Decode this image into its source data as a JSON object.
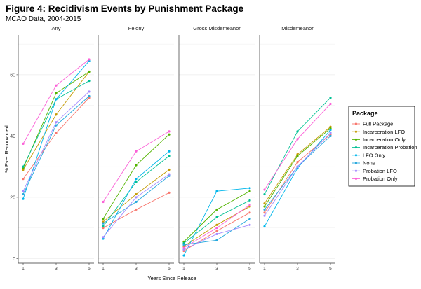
{
  "chart_data": {
    "type": "line",
    "title": "Figure 4: Recidivism Events by Punishment Package",
    "subtitle": "MCAO Data, 2004-2015",
    "xlabel": "Years Since Release",
    "ylabel": "% Ever Reconvicted",
    "x": [
      1,
      3,
      5
    ],
    "x_ticks": [
      "1",
      "3",
      "5"
    ],
    "y_ticks": [
      "0",
      "20",
      "40",
      "60"
    ],
    "ylim": [
      -1.5,
      73
    ],
    "grid": "horizontal",
    "legend": {
      "title": "Package",
      "placement": "right"
    },
    "colors": {
      "Full Package": "#F8766D",
      "Incarceration LFO": "#C49A00",
      "Incarceration Only": "#53B400",
      "Incarceration Probation": "#00C094",
      "LFO Only": "#00B6EB",
      "None": "#28A9DD",
      "Probation LFO": "#A58AFF",
      "Probation Only": "#FB61D7"
    },
    "panels": [
      {
        "name": "Any",
        "series": [
          {
            "name": "Full Package",
            "values": [
              26,
              41,
              52.5
            ]
          },
          {
            "name": "Incarceration LFO",
            "values": [
              29,
              47,
              61
            ]
          },
          {
            "name": "Incarceration Only",
            "values": [
              29.5,
              54,
              61
            ]
          },
          {
            "name": "Incarceration Probation",
            "values": [
              30,
              52,
              58
            ]
          },
          {
            "name": "LFO Only",
            "values": [
              19.5,
              52,
              64.5
            ]
          },
          {
            "name": "None",
            "values": [
              21,
              43.5,
              53
            ]
          },
          {
            "name": "Probation LFO",
            "values": [
              22,
              44.5,
              54.5
            ]
          },
          {
            "name": "Probation Only",
            "values": [
              37.5,
              56.5,
              65
            ]
          }
        ]
      },
      {
        "name": "Felony",
        "series": [
          {
            "name": "Full Package",
            "values": [
              10,
              16,
              21.5
            ]
          },
          {
            "name": "Incarceration LFO",
            "values": [
              12,
              21,
              29
            ]
          },
          {
            "name": "Incarceration Only",
            "values": [
              13,
              30.5,
              40.5
            ]
          },
          {
            "name": "Incarceration Probation",
            "values": [
              10.5,
              25,
              33.5
            ]
          },
          {
            "name": "LFO Only",
            "values": [
              6.5,
              26,
              35
            ]
          },
          {
            "name": "None",
            "values": [
              11.5,
              18.5,
              27
            ]
          },
          {
            "name": "Probation LFO",
            "values": [
              7,
              20,
              27.5
            ]
          },
          {
            "name": "Probation Only",
            "values": [
              18.5,
              35,
              41.5
            ]
          }
        ]
      },
      {
        "name": "Gross Misdemeanor",
        "series": [
          {
            "name": "Full Package",
            "values": [
              2.5,
              9,
              15
            ]
          },
          {
            "name": "Incarceration LFO",
            "values": [
              4,
              11,
              17
            ]
          },
          {
            "name": "Incarceration Only",
            "values": [
              5.5,
              16,
              22
            ]
          },
          {
            "name": "Incarceration Probation",
            "values": [
              5,
              13.5,
              19
            ]
          },
          {
            "name": "LFO Only",
            "values": [
              1,
              22,
              23
            ]
          },
          {
            "name": "None",
            "values": [
              4.5,
              6,
              13
            ]
          },
          {
            "name": "Probation LFO",
            "values": [
              3,
              8,
              11
            ]
          },
          {
            "name": "Probation Only",
            "values": [
              3.5,
              10,
              17.5
            ]
          }
        ]
      },
      {
        "name": "Misdemeanor",
        "series": [
          {
            "name": "Full Package",
            "values": [
              15,
              31.5,
              40.5
            ]
          },
          {
            "name": "Incarceration LFO",
            "values": [
              18,
              34,
              43
            ]
          },
          {
            "name": "Incarceration Only",
            "values": [
              17,
              33.5,
              42.5
            ]
          },
          {
            "name": "Incarceration Probation",
            "values": [
              21,
              41.5,
              52.5
            ]
          },
          {
            "name": "LFO Only",
            "values": [
              10.5,
              29.5,
              42
            ]
          },
          {
            "name": "None",
            "values": [
              16,
              30,
              40
            ]
          },
          {
            "name": "Probation LFO",
            "values": [
              14,
              30,
              41
            ]
          },
          {
            "name": "Probation Only",
            "values": [
              22.5,
              39,
              50.5
            ]
          }
        ]
      }
    ]
  }
}
